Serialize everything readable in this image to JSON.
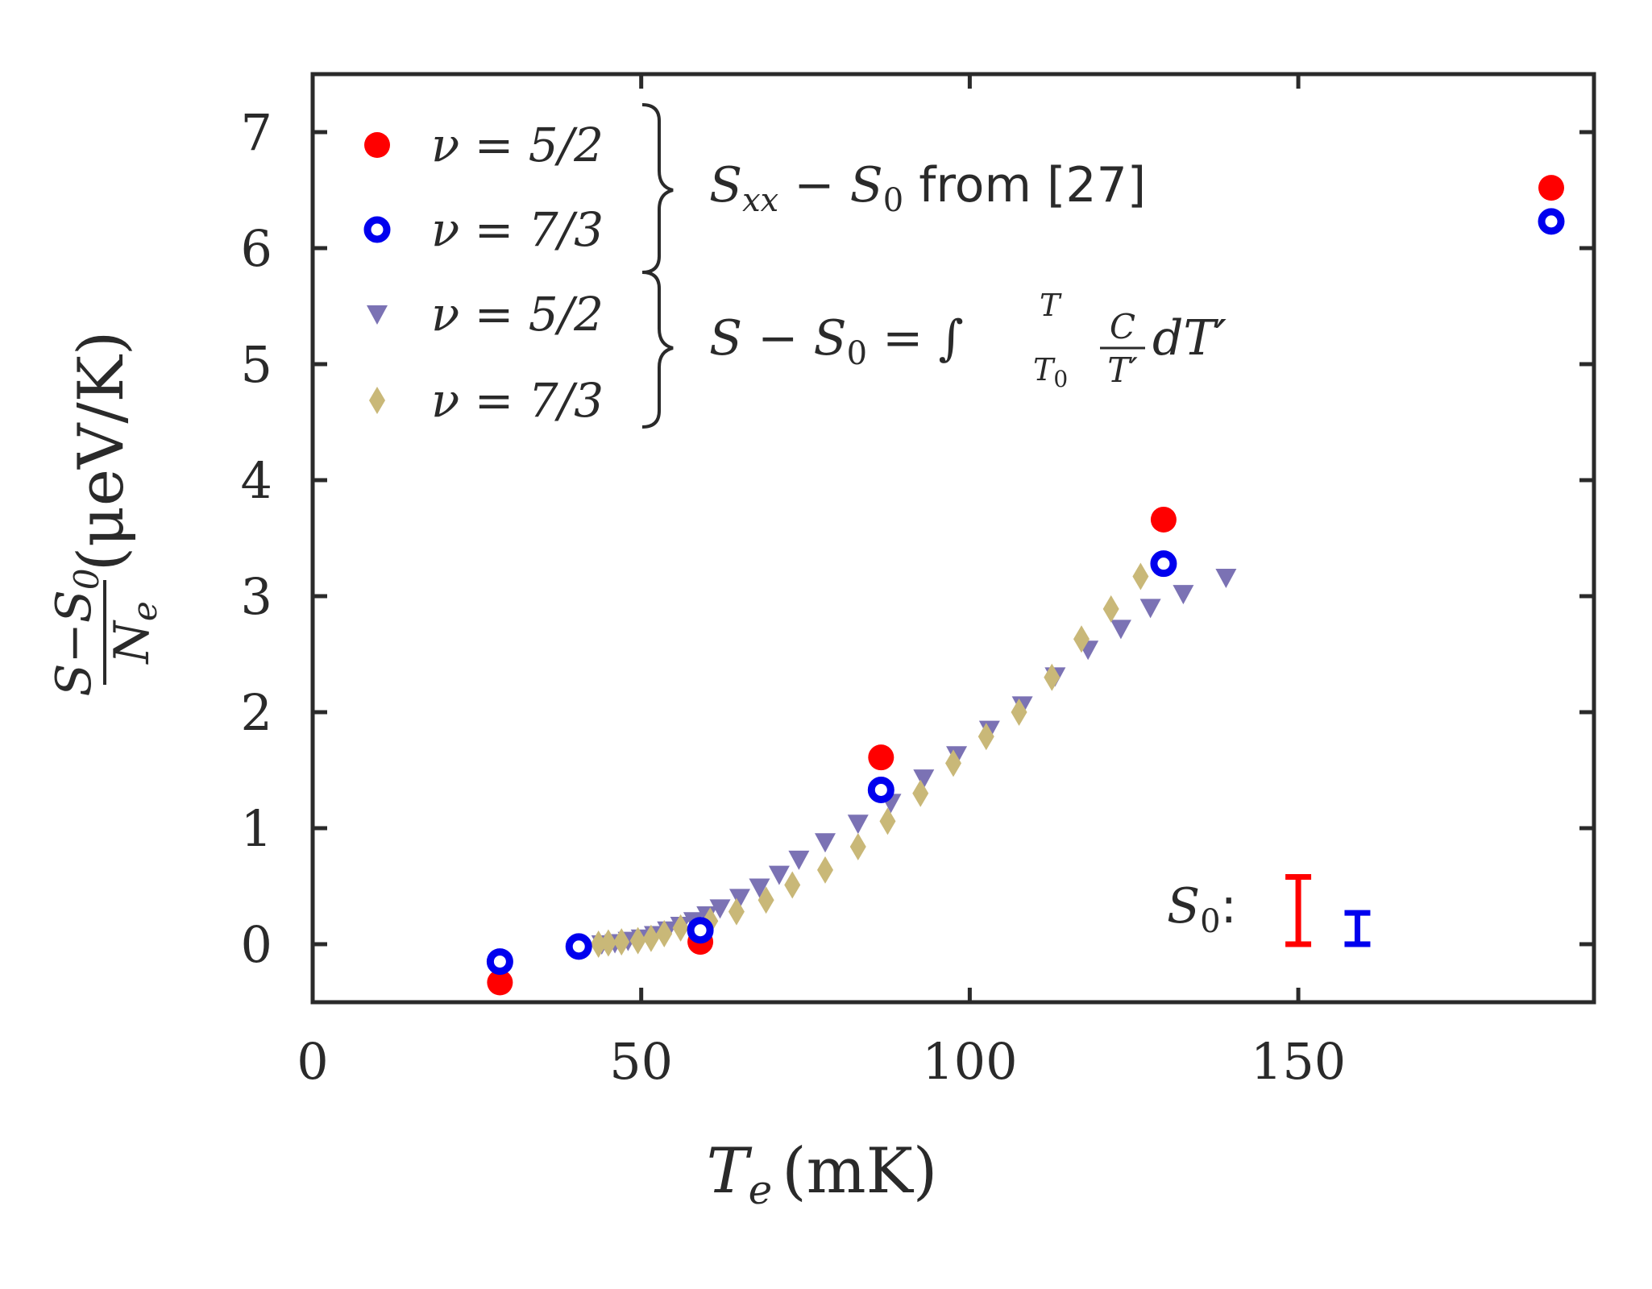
{
  "chart_data": {
    "type": "scatter",
    "xlabel_main": "T",
    "xlabel_sub": "e",
    "xlabel_unit": "(mK)",
    "ylabel_num": "S−S",
    "ylabel_num_sub": "0",
    "ylabel_den": "N",
    "ylabel_den_sub": "e",
    "ylabel_unit": "(μeV/K)",
    "xlim": [
      0,
      195
    ],
    "ylim": [
      -0.5,
      7.5
    ],
    "xticks": [
      0,
      50,
      100,
      150
    ],
    "yticks": [
      0,
      1,
      2,
      3,
      4,
      5,
      6,
      7
    ],
    "xtick_labels": [
      "0",
      "50",
      "100",
      "150"
    ],
    "ytick_labels": [
      "0",
      "1",
      "2",
      "3",
      "4",
      "5",
      "6",
      "7"
    ],
    "colors": {
      "red": "#ff0000",
      "blue": "#0000ee",
      "purple": "#7b72b4",
      "tan": "#c9b878",
      "axis": "#2a2a2a"
    },
    "series": [
      {
        "name": "ν = 5/2",
        "marker": "circle",
        "color": "#ff0000",
        "x": [
          28.5,
          59,
          86.5,
          129.5,
          188.5
        ],
        "y": [
          -0.33,
          0.02,
          1.61,
          3.66,
          6.52
        ]
      },
      {
        "name": "ν = 7/3",
        "marker": "ring",
        "color": "#0000ee",
        "x": [
          28.5,
          40.5,
          59,
          86.5,
          129.5,
          188.5
        ],
        "y": [
          -0.15,
          -0.02,
          0.12,
          1.33,
          3.28,
          6.23
        ]
      },
      {
        "name": "ν = 5/2",
        "marker": "triangle-down",
        "color": "#7b72b4",
        "x": [
          44,
          46,
          48,
          50,
          52,
          54,
          56,
          58,
          60,
          62,
          65,
          68,
          71,
          74,
          78,
          83,
          88,
          93,
          98,
          103,
          108,
          113,
          118,
          123,
          127.5,
          132.5,
          139
        ],
        "y": [
          0.0,
          0.01,
          0.03,
          0.05,
          0.08,
          0.12,
          0.16,
          0.2,
          0.25,
          0.31,
          0.4,
          0.49,
          0.6,
          0.73,
          0.88,
          1.04,
          1.22,
          1.43,
          1.63,
          1.85,
          2.06,
          2.31,
          2.54,
          2.72,
          2.9,
          3.02,
          3.16
        ]
      },
      {
        "name": "ν = 7/3",
        "marker": "diamond",
        "color": "#c9b878",
        "x": [
          43.5,
          45,
          47,
          49.5,
          51.5,
          53.5,
          56,
          60.5,
          64.5,
          69,
          73,
          78,
          83,
          87.5,
          92.5,
          97.5,
          102.5,
          107.5,
          112.5,
          117,
          121.5,
          126
        ],
        "y": [
          0.0,
          0.01,
          0.02,
          0.03,
          0.05,
          0.09,
          0.14,
          0.2,
          0.28,
          0.38,
          0.51,
          0.64,
          0.84,
          1.06,
          1.3,
          1.56,
          1.79,
          2.0,
          2.3,
          2.63,
          2.89,
          3.17
        ]
      }
    ],
    "legend": {
      "entries": [
        "ν = 5/2",
        "ν = 7/3",
        "ν = 5/2",
        "ν = 7/3"
      ],
      "placement": "top-left"
    },
    "annotations": {
      "group1": "S_xx − S_0 from [27]",
      "group1_S": "S",
      "group1_sub": "xx",
      "group1_mid": " − S",
      "group1_sub0": "0",
      "group1_tail": " from [27]",
      "group2": "S − S_0 = ∫_{T_0}^{T} C/T′ dT′",
      "group2_lhs": "S − S",
      "group2_sub0": "0",
      "group2_eq": " = ∫",
      "group2_lower": "T",
      "group2_lower_sub": "0",
      "group2_upper": "T",
      "group2_frac_num": "C",
      "group2_frac_den": "T′",
      "group2_tail": "dT′",
      "s0_label": "S",
      "s0_sub": "0",
      "s0_colon": ":",
      "s0_errorbars": [
        {
          "color": "#ff0000",
          "x": 150,
          "low": -0.0,
          "high": 0.58
        },
        {
          "color": "#0000ee",
          "x": 159,
          "low": -0.0,
          "high": 0.27
        }
      ]
    }
  }
}
